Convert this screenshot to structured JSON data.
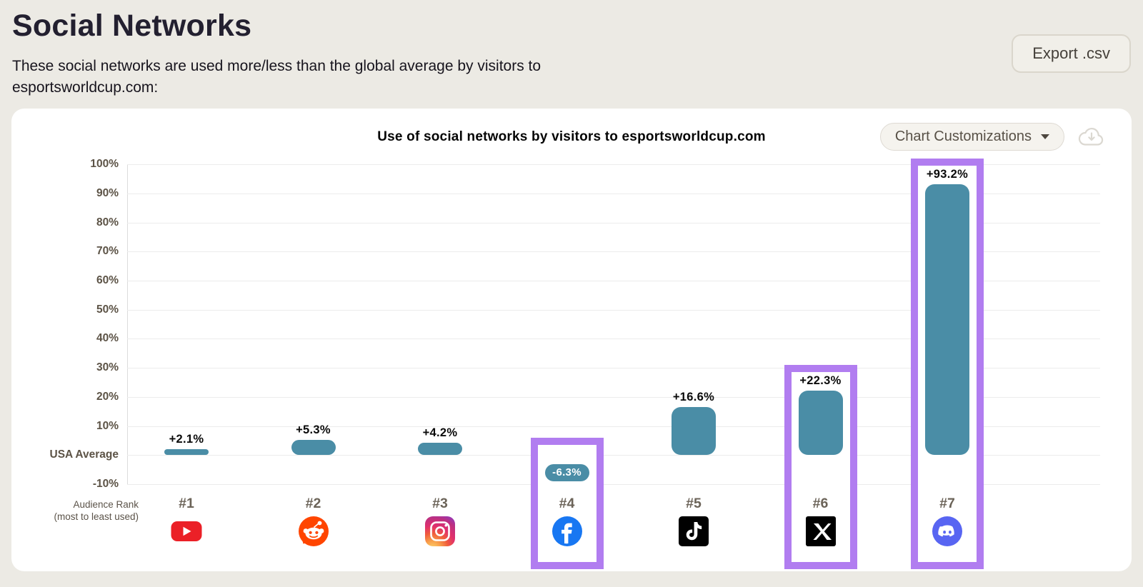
{
  "header": {
    "title": "Social Networks",
    "subtitle": "These social networks are used more/less than the global average by visitors to esportsworldcup.com:",
    "export_button": "Export .csv"
  },
  "chart": {
    "title": "Use of social networks by visitors to esportsworldcup.com",
    "customizations_button": "Chart Customizations",
    "download_icon": "cloud-download-icon"
  },
  "chart_data": {
    "type": "bar",
    "title": "Use of social networks by visitors to esportsworldcup.com",
    "ylim": [
      -10,
      100
    ],
    "grid": true,
    "legend": false,
    "y_tick_values": [
      100,
      90,
      80,
      70,
      60,
      50,
      40,
      30,
      20,
      10,
      0,
      -10
    ],
    "y_tick_labels": [
      "100%",
      "90%",
      "80%",
      "70%",
      "60%",
      "50%",
      "40%",
      "30%",
      "20%",
      "10%",
      "USA Average",
      "-10%"
    ],
    "baseline_label": "USA Average",
    "x_axis_title": {
      "line1": "Audience Rank",
      "line2": "(most to least used)"
    },
    "categories": [
      "YouTube",
      "Reddit",
      "Instagram",
      "Facebook",
      "TikTok",
      "X",
      "Discord"
    ],
    "ranks": [
      "#1",
      "#2",
      "#3",
      "#4",
      "#5",
      "#6",
      "#7"
    ],
    "values": [
      2.1,
      5.3,
      4.2,
      -6.3,
      16.6,
      22.3,
      93.2
    ],
    "value_labels": [
      "+2.1%",
      "+5.3%",
      "+4.2%",
      "-6.3%",
      "+16.6%",
      "+22.3%",
      "+93.2%"
    ],
    "highlighted": [
      false,
      false,
      false,
      true,
      false,
      true,
      true
    ],
    "icons": [
      "youtube-icon",
      "reddit-icon",
      "instagram-icon",
      "facebook-icon",
      "tiktok-icon",
      "x-icon",
      "discord-icon"
    ],
    "colors": {
      "bar": "#4A8DA6",
      "highlight_border": "#B17DF0",
      "grid": "#ECECEC",
      "axis_text": "#5C5346"
    }
  }
}
